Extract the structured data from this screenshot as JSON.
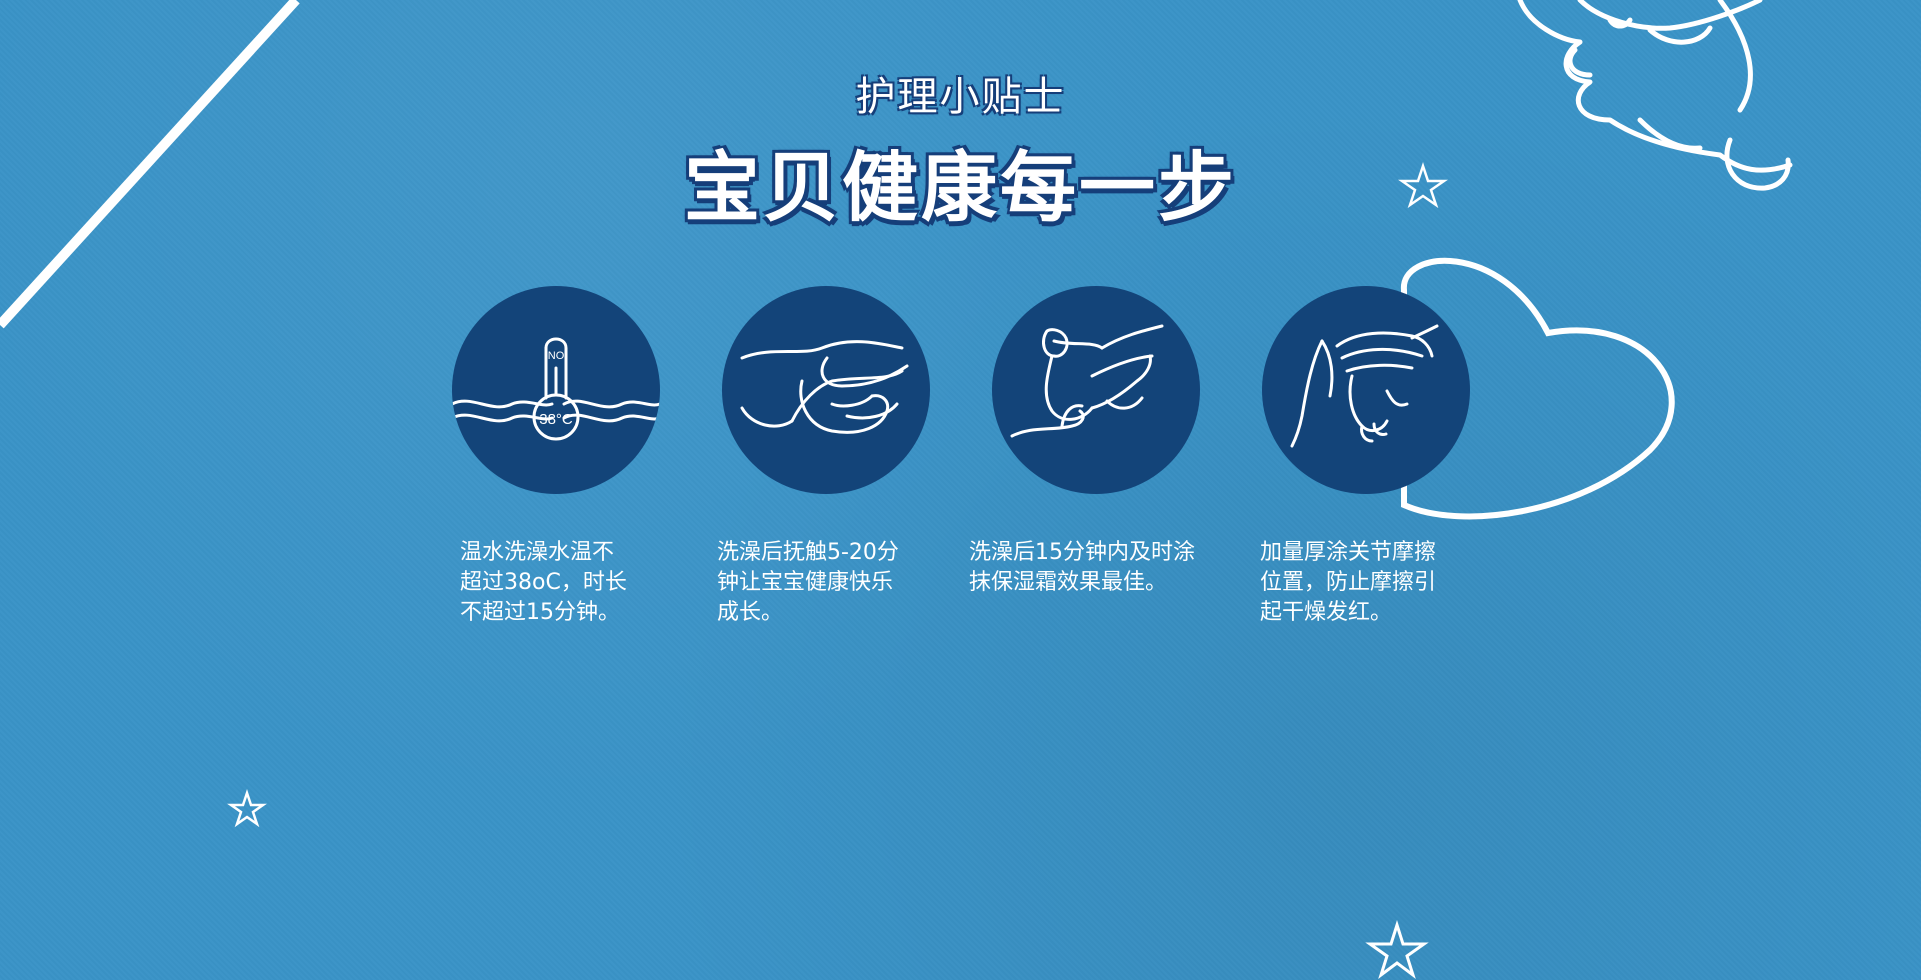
{
  "header": {
    "subtitle": "护理小贴士",
    "title": "宝贝健康每一步"
  },
  "tips": [
    {
      "icon": "thermometer-water-icon",
      "icon_labels": {
        "top": "NO",
        "bottom": "38°C"
      },
      "text": "温水洗澡水温不\n超过38oC，时长\n不超过15分钟。"
    },
    {
      "icon": "hands-stroking-baby-icon",
      "text": "洗澡后抚触5-20分\n钟让宝宝健康快乐\n成长。"
    },
    {
      "icon": "hands-applying-cream-icon",
      "text": "洗澡后15分钟内及时涂\n抹保湿霜效果最佳。"
    },
    {
      "icon": "hand-holding-baby-foot-icon",
      "text": "加量厚涂关节摩擦\n位置，防止摩擦引\n起干燥发红。"
    }
  ],
  "colors": {
    "background": "#3a93c7",
    "circle": "#134479",
    "outline": "#ffffff",
    "title_shadow": "#163f7a"
  }
}
